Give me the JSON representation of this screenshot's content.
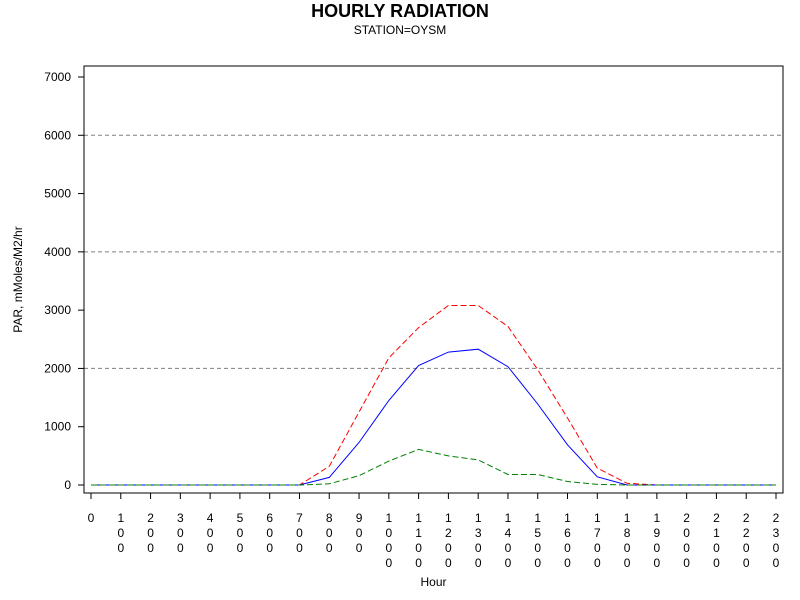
{
  "chart_data": {
    "type": "line",
    "title": "HOURLY RADIATION",
    "subtitle": "STATION=OYSM",
    "xlabel": "Hour",
    "ylabel": "PAR, mMoles/M2/hr",
    "x": [
      0,
      100,
      200,
      300,
      400,
      500,
      600,
      700,
      800,
      900,
      1000,
      1100,
      1200,
      1300,
      1400,
      1500,
      1600,
      1700,
      1800,
      1900,
      2000,
      2100,
      2200,
      2300
    ],
    "xlim": [
      0,
      2300
    ],
    "ylim": [
      0,
      7000
    ],
    "yticks": [
      0,
      1000,
      2000,
      3000,
      4000,
      5000,
      6000,
      7000
    ],
    "gridlines_y": [
      2000,
      4000,
      6000
    ],
    "grid": true,
    "series": [
      {
        "color": "#ff0000",
        "style": "dashed",
        "values": [
          0,
          0,
          0,
          0,
          0,
          0,
          0,
          0,
          320,
          1250,
          2180,
          2700,
          3080,
          3080,
          2720,
          1980,
          1150,
          290,
          30,
          0,
          0,
          0,
          0,
          0
        ]
      },
      {
        "color": "#0000ff",
        "style": "solid",
        "values": [
          0,
          0,
          0,
          0,
          0,
          0,
          0,
          0,
          130,
          730,
          1450,
          2050,
          2280,
          2330,
          2030,
          1390,
          690,
          140,
          0,
          0,
          0,
          0,
          0,
          0
        ]
      },
      {
        "color": "#008000",
        "style": "dashed",
        "values": [
          0,
          0,
          0,
          0,
          0,
          0,
          0,
          0,
          20,
          160,
          410,
          610,
          500,
          430,
          180,
          180,
          60,
          10,
          0,
          0,
          0,
          0,
          0,
          0
        ]
      }
    ]
  }
}
